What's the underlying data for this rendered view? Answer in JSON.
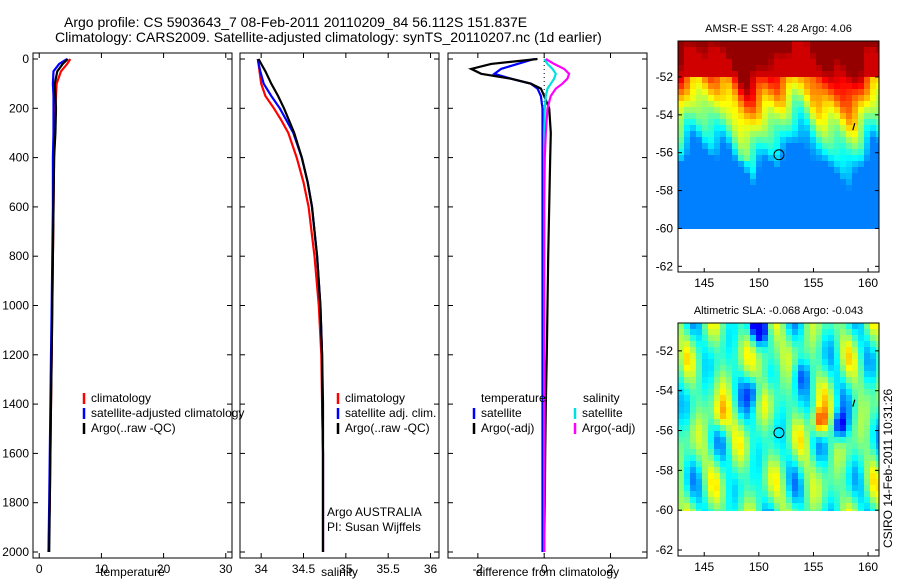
{
  "header": {
    "line1": "Argo profile: CS 5903643_7 08-Feb-2011 20110209_84 56.112S 151.837E",
    "line2": "Climatology: CARS2009. Satellite-adjusted climatology: synTS_20110207.nc (1d earlier)"
  },
  "colors": {
    "climatology": "#ff0000",
    "satellite": "#0000ff",
    "argo": "#000000",
    "satellite_diff": "#00e0e0",
    "argo_adj_diff": "#ff00ff"
  },
  "chart_data": [
    {
      "type": "line",
      "id": "temperature",
      "xlabel": "temperature",
      "ylim": [
        2000,
        0
      ],
      "xlim": [
        -1,
        31
      ],
      "xticks": [
        "0",
        "10",
        "20",
        "30"
      ],
      "yticks": [
        "0",
        "200",
        "400",
        "600",
        "800",
        "1000",
        "1200",
        "1400",
        "1600",
        "1800",
        "2000"
      ],
      "y": [
        0,
        20,
        50,
        100,
        150,
        200,
        300,
        400,
        600,
        800,
        1000,
        1200,
        1400,
        1600,
        1800,
        2000
      ],
      "series": [
        {
          "name": "climatology",
          "color": "#ff0000",
          "values": [
            5.0,
            4.5,
            3.5,
            2.8,
            2.7,
            2.6,
            2.5,
            2.4,
            2.3,
            2.2,
            2.1,
            2.0,
            1.9,
            1.8,
            1.7,
            1.5
          ]
        },
        {
          "name": "satellite-adjusted climatology",
          "color": "#0000ff",
          "values": [
            4.5,
            3.2,
            2.3,
            2.2,
            2.3,
            2.3,
            2.3,
            2.2,
            2.2,
            2.1,
            2.0,
            1.9,
            1.8,
            1.7,
            1.6,
            1.5
          ]
        },
        {
          "name": "Argo(..raw -QC)",
          "color": "#000000",
          "values": [
            4.6,
            3.8,
            2.9,
            2.5,
            2.6,
            2.7,
            2.6,
            2.4,
            2.3,
            2.2,
            2.1,
            2.0,
            1.9,
            1.8,
            1.7,
            1.6
          ]
        }
      ],
      "legend": [
        "climatology",
        "satellite-adjusted climatology",
        "Argo(..raw -QC)"
      ]
    },
    {
      "type": "line",
      "id": "salinity",
      "xlabel": "salinity",
      "xlim": [
        33.75,
        36.1
      ],
      "ylim": [
        2000,
        0
      ],
      "xticks": [
        "34",
        "34.5",
        "35",
        "35.5",
        "36"
      ],
      "y": [
        0,
        20,
        50,
        100,
        150,
        200,
        250,
        300,
        400,
        500,
        600,
        800,
        1000,
        1200,
        1400,
        1600,
        1800,
        2000
      ],
      "series": [
        {
          "name": "climatology",
          "color": "#ff0000",
          "values": [
            33.96,
            33.97,
            33.98,
            34.0,
            34.05,
            34.15,
            34.24,
            34.32,
            34.42,
            34.5,
            34.56,
            34.63,
            34.68,
            34.71,
            34.72,
            34.73,
            34.73,
            34.73
          ]
        },
        {
          "name": "satellite adj. clim.",
          "color": "#0000ff",
          "values": [
            33.96,
            33.97,
            33.99,
            34.03,
            34.12,
            34.22,
            34.3,
            34.38,
            34.48,
            34.55,
            34.6,
            34.66,
            34.7,
            34.72,
            34.72,
            34.73,
            34.73,
            34.73
          ]
        },
        {
          "name": "Argo(..raw -QC)",
          "color": "#000000",
          "values": [
            33.97,
            34.0,
            34.05,
            34.12,
            34.2,
            34.27,
            34.33,
            34.39,
            34.48,
            34.55,
            34.6,
            34.66,
            34.7,
            34.72,
            34.73,
            34.73,
            34.73,
            34.73
          ]
        }
      ],
      "legend": [
        "climatology",
        "satellite adj. clim.",
        "Argo(..raw -QC)"
      ],
      "credit": [
        "Argo AUSTRALIA",
        "PI: Susan Wijffels"
      ]
    },
    {
      "type": "line",
      "id": "difference",
      "xlabel": "difference from climatology",
      "xlim": [
        -2.9,
        3.1
      ],
      "ylim": [
        2000,
        0
      ],
      "xticks": [
        "-2",
        "0",
        "2"
      ],
      "y": [
        0,
        20,
        40,
        60,
        80,
        100,
        120,
        150,
        200,
        300,
        400,
        600,
        800,
        1000,
        1200,
        1400,
        1600,
        1800,
        2000
      ],
      "series": [
        {
          "name": "temperature satellite",
          "color": "#0000ff",
          "values": [
            -0.3,
            -0.8,
            -1.3,
            -1.5,
            -1.0,
            -0.4,
            -0.2,
            -0.1,
            -0.05,
            -0.05,
            -0.05,
            -0.05,
            -0.05,
            -0.05,
            -0.05,
            -0.05,
            -0.05,
            -0.05,
            -0.05
          ]
        },
        {
          "name": "temperature Argo(-adj)",
          "color": "#000000",
          "values": [
            -0.2,
            -1.6,
            -2.2,
            -1.9,
            -1.0,
            -0.4,
            -0.1,
            0.0,
            0.15,
            0.2,
            0.18,
            0.15,
            0.12,
            0.1,
            0.08,
            0.05,
            0.03,
            0.02,
            0.0
          ]
        },
        {
          "name": "salinity satellite",
          "color": "#00e0e0",
          "values": [
            0.0,
            0.1,
            0.25,
            0.35,
            0.3,
            0.2,
            0.1,
            0.05,
            0.02,
            0.0,
            0.0,
            0.0,
            0.0,
            0.0,
            0.0,
            0.0,
            0.0,
            0.0,
            0.0
          ]
        },
        {
          "name": "salinity Argo(-adj)",
          "color": "#ff00ff",
          "values": [
            0.05,
            0.3,
            0.6,
            0.75,
            0.7,
            0.55,
            0.35,
            0.2,
            0.1,
            0.05,
            0.02,
            0.0,
            0.0,
            0.0,
            0.0,
            0.0,
            0.0,
            0.0,
            0.0
          ]
        }
      ],
      "legend_heads": [
        "temperature",
        "salinity"
      ],
      "legend": [
        "satellite",
        "Argo(-adj)",
        "satellite",
        "Argo(-adj)"
      ]
    }
  ],
  "maps": [
    {
      "id": "sst",
      "title": "AMSR-E SST: 4.28 Argo: 4.06",
      "kind": "sst",
      "xticks": [
        "145",
        "150",
        "155",
        "160"
      ],
      "yticks": [
        "-52",
        "-54",
        "-56",
        "-58",
        "-60",
        "-62"
      ],
      "xlim": [
        142.6,
        161
      ],
      "ylim": [
        -62.3,
        -50.1
      ],
      "data_bottom": -60,
      "float_pos": [
        151.84,
        -56.11
      ]
    },
    {
      "id": "sla",
      "title": "Altimetric SLA: -0.068 Argo: -0.043",
      "kind": "sla",
      "xticks": [
        "145",
        "150",
        "155",
        "160"
      ],
      "yticks": [
        "-52",
        "-54",
        "-56",
        "-58",
        "-60",
        "-62"
      ],
      "xlim": [
        142.6,
        161
      ],
      "ylim": [
        -62.3,
        -50.6
      ],
      "data_bottom": -60,
      "float_pos": [
        151.84,
        -56.11
      ]
    }
  ],
  "footer": {
    "stamp": "CSIRO 14-Feb-2011 10:31:26"
  }
}
